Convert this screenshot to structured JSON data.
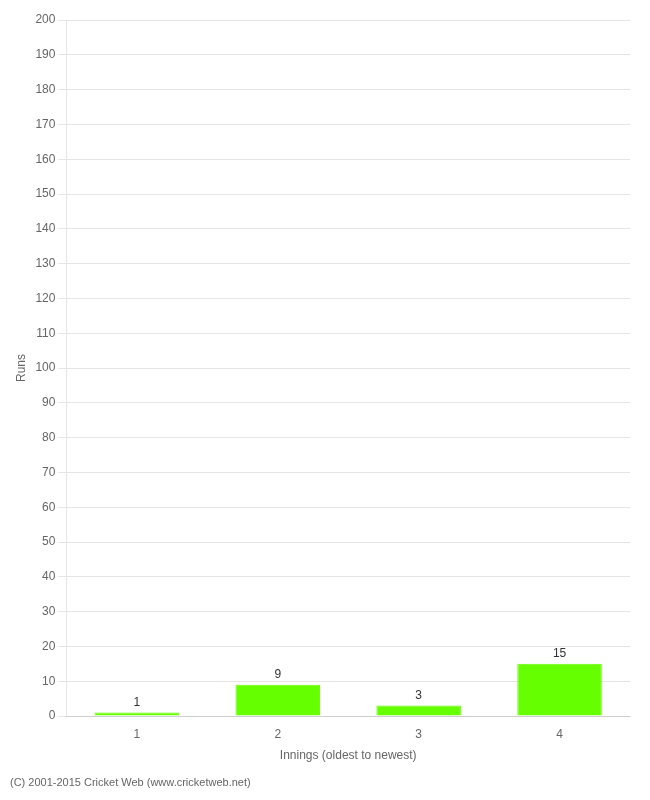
{
  "chart_data": {
    "type": "bar",
    "categories": [
      "1",
      "2",
      "3",
      "4"
    ],
    "values": [
      1,
      9,
      3,
      15
    ],
    "color": "#66ff00",
    "xlabel": "Innings (oldest to newest)",
    "ylabel": "Runs",
    "ylim": [
      0,
      200
    ],
    "yticks": [
      0,
      10,
      20,
      30,
      40,
      50,
      60,
      70,
      80,
      90,
      100,
      110,
      120,
      130,
      140,
      150,
      160,
      170,
      180,
      190,
      200
    ],
    "grid": true,
    "data_labels": true,
    "annotations": [
      "(C) 2001-2015 Cricket Web (www.cricketweb.net)"
    ]
  }
}
